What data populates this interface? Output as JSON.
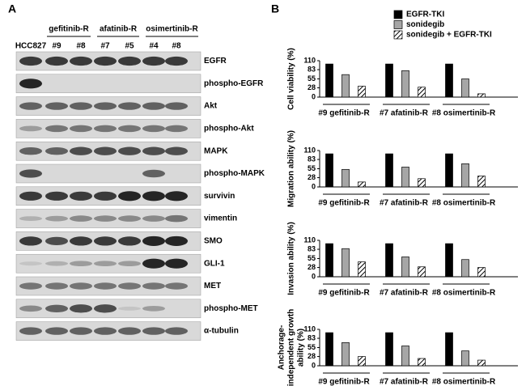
{
  "panel_a": {
    "label": "A",
    "groups": [
      "gefitinib-R",
      "afatinib-R",
      "osimertinib-R"
    ],
    "lanes": [
      "HCC827",
      "#9",
      "#8",
      "#7",
      "#5",
      "#4",
      "#8"
    ],
    "rows": [
      "EGFR",
      "phospho-EGFR",
      "Akt",
      "phospho-Akt",
      "MAPK",
      "phospho-MAPK",
      "survivin",
      "vimentin",
      "SMO",
      "GLI-1",
      "MET",
      "phospho-MET",
      "α-tubulin"
    ]
  },
  "panel_b_label": "B",
  "chart_data": [
    {
      "type": "bar",
      "ylabel": [
        "Cell viability (%)"
      ],
      "categories": [
        "#9 gefitinib-R",
        "#7 afatinib-R",
        "#8 osimertinib-R"
      ],
      "series": [
        {
          "name": "EGFR-TKI",
          "color": "#000000",
          "values": [
            100,
            100,
            100
          ]
        },
        {
          "name": "sonidegib",
          "color": "#a6a6a6",
          "values": [
            68,
            80,
            55
          ]
        },
        {
          "name": "sonidegib + EGFR-TKI",
          "color": "hatch",
          "values": [
            33,
            30,
            10
          ]
        }
      ],
      "ylim": [
        0,
        110
      ],
      "yticks": [
        0,
        28,
        55,
        83,
        110
      ]
    },
    {
      "type": "bar",
      "ylabel": [
        "Migration ability (%)"
      ],
      "categories": [
        "#9 gefitinib-R",
        "#7 afatinib-R",
        "#8 osimertinib-R"
      ],
      "series": [
        {
          "name": "EGFR-TKI",
          "color": "#000000",
          "values": [
            100,
            100,
            100
          ]
        },
        {
          "name": "sonidegib",
          "color": "#a6a6a6",
          "values": [
            53,
            60,
            70
          ]
        },
        {
          "name": "sonidegib + EGFR-TKI",
          "color": "hatch",
          "values": [
            15,
            25,
            33
          ]
        }
      ],
      "ylim": [
        0,
        110
      ],
      "yticks": [
        0,
        28,
        55,
        83,
        110
      ]
    },
    {
      "type": "bar",
      "ylabel": [
        "Invasion ability (%)"
      ],
      "categories": [
        "#9 gefitinib-R",
        "#7 afatinib-R",
        "#8 osimertinib-R"
      ],
      "series": [
        {
          "name": "EGFR-TKI",
          "color": "#000000",
          "values": [
            100,
            100,
            100
          ]
        },
        {
          "name": "sonidegib",
          "color": "#a6a6a6",
          "values": [
            85,
            60,
            52
          ]
        },
        {
          "name": "sonidegib + EGFR-TKI",
          "color": "hatch",
          "values": [
            45,
            30,
            28
          ]
        }
      ],
      "ylim": [
        0,
        110
      ],
      "yticks": [
        0,
        28,
        55,
        83,
        110
      ]
    },
    {
      "type": "bar",
      "ylabel": [
        "Anchorage-",
        "independent growth",
        "ability (%)"
      ],
      "categories": [
        "#9 gefitinib-R",
        "#7 afatinib-R",
        "#8 osimertinib-R"
      ],
      "series": [
        {
          "name": "EGFR-TKI",
          "color": "#000000",
          "values": [
            100,
            100,
            100
          ]
        },
        {
          "name": "sonidegib",
          "color": "#a6a6a6",
          "values": [
            70,
            60,
            45
          ]
        },
        {
          "name": "sonidegib + EGFR-TKI",
          "color": "hatch",
          "values": [
            28,
            22,
            17
          ]
        }
      ],
      "ylim": [
        0,
        110
      ],
      "yticks": [
        0,
        28,
        55,
        83,
        110
      ]
    }
  ]
}
